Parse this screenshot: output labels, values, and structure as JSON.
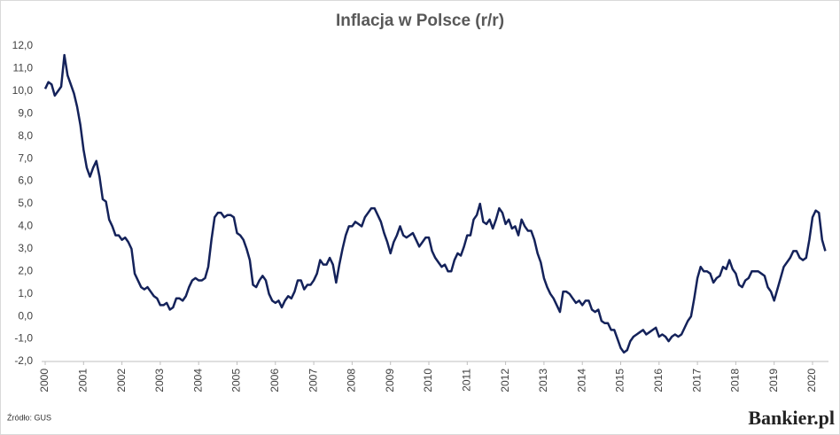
{
  "chart_data": {
    "type": "line",
    "title": "Inflacja w Polsce (r/r)",
    "source": "Źródło: GUS",
    "brand": "Bankier.pl",
    "color": "#14225a",
    "grid": false,
    "ylim": [
      -2,
      12
    ],
    "yticks": [
      {
        "value": -2,
        "label": "-2,0"
      },
      {
        "value": -1,
        "label": "-1,0"
      },
      {
        "value": 0,
        "label": "0,0"
      },
      {
        "value": 1,
        "label": "1,0"
      },
      {
        "value": 2,
        "label": "2,0"
      },
      {
        "value": 3,
        "label": "3,0"
      },
      {
        "value": 4,
        "label": "4,0"
      },
      {
        "value": 5,
        "label": "5,0"
      },
      {
        "value": 6,
        "label": "6,0"
      },
      {
        "value": 7,
        "label": "7,0"
      },
      {
        "value": 8,
        "label": "8,0"
      },
      {
        "value": 9,
        "label": "9,0"
      },
      {
        "value": 10,
        "label": "10,0"
      },
      {
        "value": 11,
        "label": "11,0"
      },
      {
        "value": 12,
        "label": "12,0"
      }
    ],
    "categories": [
      "2000",
      null,
      null,
      null,
      null,
      null,
      null,
      null,
      null,
      null,
      null,
      null,
      "2001",
      null,
      null,
      null,
      null,
      null,
      null,
      null,
      null,
      null,
      null,
      null,
      "2002",
      null,
      null,
      null,
      null,
      null,
      null,
      null,
      null,
      null,
      null,
      null,
      "2003",
      null,
      null,
      null,
      null,
      null,
      null,
      null,
      null,
      null,
      null,
      null,
      "2004",
      null,
      null,
      null,
      null,
      null,
      null,
      null,
      null,
      null,
      null,
      null,
      "2005",
      null,
      null,
      null,
      null,
      null,
      null,
      null,
      null,
      null,
      null,
      null,
      "2006",
      null,
      null,
      null,
      null,
      null,
      null,
      null,
      null,
      null,
      null,
      null,
      "2007",
      null,
      null,
      null,
      null,
      null,
      null,
      null,
      null,
      null,
      null,
      null,
      "2008",
      null,
      null,
      null,
      null,
      null,
      null,
      null,
      null,
      null,
      null,
      null,
      "2009",
      null,
      null,
      null,
      null,
      null,
      null,
      null,
      null,
      null,
      null,
      null,
      "2010",
      null,
      null,
      null,
      null,
      null,
      null,
      null,
      null,
      null,
      null,
      null,
      "2011",
      null,
      null,
      null,
      null,
      null,
      null,
      null,
      null,
      null,
      null,
      null,
      "2012",
      null,
      null,
      null,
      null,
      null,
      null,
      null,
      null,
      null,
      null,
      null,
      "2013",
      null,
      null,
      null,
      null,
      null,
      null,
      null,
      null,
      null,
      null,
      null,
      "2014",
      null,
      null,
      null,
      null,
      null,
      null,
      null,
      null,
      null,
      null,
      null,
      "2015",
      null,
      null,
      null,
      null,
      null,
      null,
      null,
      null,
      null,
      null,
      null,
      "2016",
      null,
      null,
      null,
      null,
      null,
      null,
      null,
      null,
      null,
      null,
      null,
      "2017",
      null,
      null,
      null,
      null,
      null,
      null,
      null,
      null,
      null,
      null,
      null,
      "2018",
      null,
      null,
      null,
      null,
      null,
      null,
      null,
      null,
      null,
      null,
      null,
      "2019",
      null,
      null,
      null,
      null,
      null,
      null,
      null,
      null,
      null,
      null,
      null,
      "2020",
      null,
      null,
      null,
      null
    ],
    "values": [
      10.1,
      10.4,
      10.3,
      9.8,
      10.0,
      10.2,
      11.6,
      10.7,
      10.3,
      9.9,
      9.3,
      8.5,
      7.4,
      6.6,
      6.2,
      6.6,
      6.9,
      6.2,
      5.2,
      5.1,
      4.3,
      4.0,
      3.6,
      3.6,
      3.4,
      3.5,
      3.3,
      3.0,
      1.9,
      1.6,
      1.3,
      1.2,
      1.3,
      1.1,
      0.9,
      0.8,
      0.5,
      0.5,
      0.6,
      0.3,
      0.4,
      0.8,
      0.8,
      0.7,
      0.9,
      1.3,
      1.6,
      1.7,
      1.6,
      1.6,
      1.7,
      2.2,
      3.4,
      4.4,
      4.6,
      4.6,
      4.4,
      4.5,
      4.5,
      4.4,
      3.7,
      3.6,
      3.4,
      3.0,
      2.5,
      1.4,
      1.3,
      1.6,
      1.8,
      1.6,
      1.0,
      0.7,
      0.6,
      0.7,
      0.4,
      0.7,
      0.9,
      0.8,
      1.1,
      1.6,
      1.6,
      1.2,
      1.4,
      1.4,
      1.6,
      1.9,
      2.5,
      2.3,
      2.3,
      2.6,
      2.3,
      1.5,
      2.3,
      3.0,
      3.6,
      4.0,
      4.0,
      4.2,
      4.1,
      4.0,
      4.4,
      4.6,
      4.8,
      4.8,
      4.5,
      4.2,
      3.7,
      3.3,
      2.8,
      3.3,
      3.6,
      4.0,
      3.6,
      3.5,
      3.6,
      3.7,
      3.4,
      3.1,
      3.3,
      3.5,
      3.5,
      2.9,
      2.6,
      2.4,
      2.2,
      2.3,
      2.0,
      2.0,
      2.5,
      2.8,
      2.7,
      3.1,
      3.6,
      3.6,
      4.3,
      4.5,
      5.0,
      4.2,
      4.1,
      4.3,
      3.9,
      4.3,
      4.8,
      4.6,
      4.1,
      4.3,
      3.9,
      4.0,
      3.6,
      4.3,
      4.0,
      3.8,
      3.8,
      3.4,
      2.8,
      2.4,
      1.7,
      1.3,
      1.0,
      0.8,
      0.5,
      0.2,
      1.1,
      1.1,
      1.0,
      0.8,
      0.6,
      0.7,
      0.5,
      0.7,
      0.7,
      0.3,
      0.2,
      0.3,
      -0.2,
      -0.3,
      -0.3,
      -0.6,
      -0.6,
      -1.0,
      -1.4,
      -1.6,
      -1.5,
      -1.1,
      -0.9,
      -0.8,
      -0.7,
      -0.6,
      -0.8,
      -0.7,
      -0.6,
      -0.5,
      -0.9,
      -0.8,
      -0.9,
      -1.1,
      -0.9,
      -0.8,
      -0.9,
      -0.8,
      -0.5,
      -0.2,
      0.0,
      0.8,
      1.7,
      2.2,
      2.0,
      2.0,
      1.9,
      1.5,
      1.7,
      1.8,
      2.2,
      2.1,
      2.5,
      2.1,
      1.9,
      1.4,
      1.3,
      1.6,
      1.7,
      2.0,
      2.0,
      2.0,
      1.9,
      1.8,
      1.3,
      1.1,
      0.7,
      1.2,
      1.7,
      2.2,
      2.4,
      2.6,
      2.9,
      2.9,
      2.6,
      2.5,
      2.6,
      3.4,
      4.4,
      4.7,
      4.6,
      3.4,
      2.9
    ]
  }
}
